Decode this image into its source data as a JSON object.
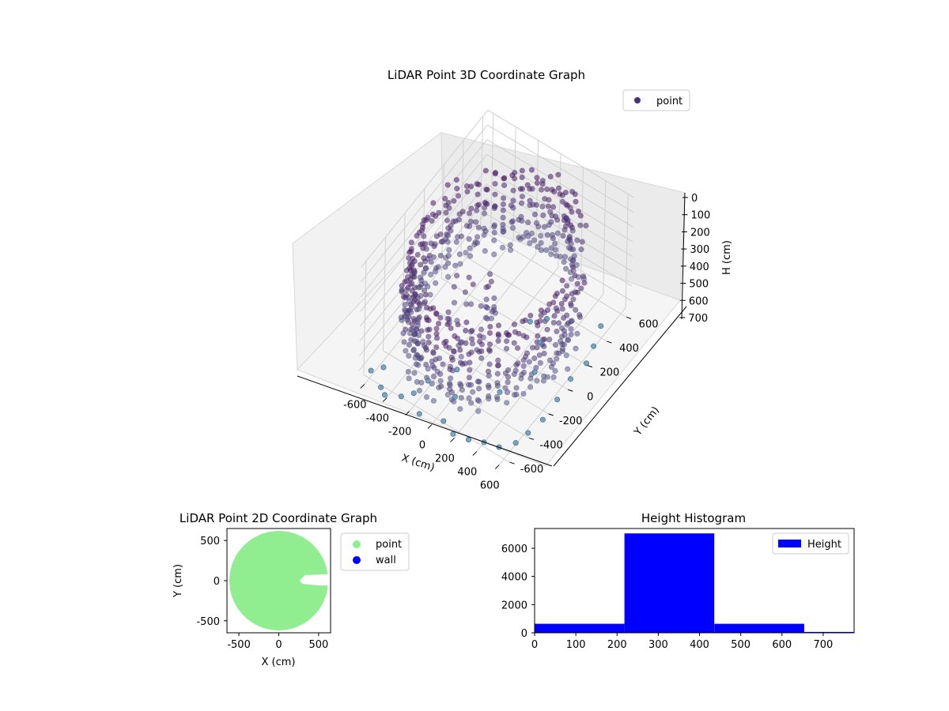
{
  "figure": {
    "background": "#ffffff"
  },
  "chart_data": [
    {
      "type": "scatter",
      "projection": "3d",
      "title": "LiDAR Point 3D Coordinate Graph",
      "xlabel": "X (cm)",
      "ylabel": "Y (cm)",
      "zlabel": "H (cm)",
      "xlim": [
        -650,
        650
      ],
      "ylim": [
        -650,
        650
      ],
      "zlim": [
        770,
        0
      ],
      "x_ticks": [
        -600,
        -400,
        -200,
        0,
        200,
        400,
        600
      ],
      "y_ticks": [
        -600,
        -400,
        -200,
        0,
        200,
        400,
        600
      ],
      "z_ticks": [
        0,
        100,
        200,
        300,
        400,
        500,
        600,
        700
      ],
      "grid": true,
      "legend": {
        "placement": "top-right",
        "entries": [
          "point"
        ]
      },
      "colors": {
        "marker": "#46317e",
        "colormap": [
          "#440154",
          "#3b528b",
          "#5a8fb0",
          "#7fb3c8"
        ]
      },
      "description_of_data": "ring-shaped wall of points about 520-650 cm radius from origin, mostly between heights 150-600 cm, with a gap toward +Y/+X side and scattered points near floor",
      "series": [
        {
          "name": "point",
          "wall_ring": {
            "radius_min": 520,
            "radius_max": 650,
            "h_min": 120,
            "h_max": 620,
            "gap_deg_from": 20,
            "gap_deg_to": 60
          },
          "scattered": [
            [
              -620,
              -560,
              760
            ],
            [
              -560,
              -500,
              760
            ],
            [
              -480,
              -620,
              760
            ],
            [
              -420,
              -650,
              760
            ],
            [
              -300,
              -620,
              740
            ],
            [
              -240,
              -560,
              740
            ],
            [
              -120,
              -640,
              760
            ],
            [
              60,
              -600,
              760
            ],
            [
              180,
              -640,
              760
            ],
            [
              300,
              -620,
              760
            ],
            [
              420,
              -600,
              740
            ],
            [
              520,
              -560,
              760
            ],
            [
              600,
              -480,
              760
            ],
            [
              640,
              -400,
              740
            ],
            [
              650,
              -260,
              760
            ],
            [
              640,
              -100,
              760
            ],
            [
              620,
              60,
              760
            ],
            [
              640,
              200,
              760
            ],
            [
              600,
              320,
              760
            ],
            [
              560,
              440,
              740
            ],
            [
              200,
              300,
              740
            ],
            [
              260,
              160,
              760
            ],
            [
              120,
              220,
              730
            ],
            [
              -80,
              -300,
              720
            ],
            [
              -200,
              -460,
              720
            ],
            [
              40,
              -460,
              720
            ],
            [
              300,
              -300,
              700
            ],
            [
              420,
              -80,
              690
            ]
          ]
        }
      ]
    },
    {
      "type": "scatter",
      "title": "LiDAR Point 2D Coordinate Graph",
      "xlabel": "X (cm)",
      "ylabel": "Y (cm)",
      "xlim": [
        -650,
        650
      ],
      "ylim": [
        -650,
        650
      ],
      "x_ticks": [
        -500,
        0,
        500
      ],
      "y_ticks": [
        500,
        0,
        -500
      ],
      "legend": {
        "placement": "right-outside",
        "entries": [
          "point",
          "wall"
        ]
      },
      "colors": {
        "point": "#90ee90",
        "wall": "#0000ff"
      },
      "series": [
        {
          "name": "point",
          "shape": "filled disc of radius ~600 cm with a notch opening toward +X between about -60 and +80 cm in Y"
        },
        {
          "name": "wall",
          "values": []
        }
      ]
    },
    {
      "type": "bar",
      "title": "Height Histogram",
      "xlabel": "",
      "ylabel": "",
      "xlim": [
        0,
        775
      ],
      "ylim": [
        0,
        7400
      ],
      "x_ticks": [
        0,
        100,
        200,
        300,
        400,
        500,
        600,
        700
      ],
      "y_ticks": [
        0,
        2000,
        4000,
        6000
      ],
      "legend": {
        "placement": "top-right",
        "entries": [
          "Height"
        ]
      },
      "colors": {
        "bar": "#0000ff"
      },
      "bins": [
        {
          "from": 0,
          "to": 218,
          "count": 640
        },
        {
          "from": 218,
          "to": 436,
          "count": 7050
        },
        {
          "from": 436,
          "to": 654,
          "count": 640
        },
        {
          "from": 654,
          "to": 775,
          "count": 60
        }
      ],
      "series": [
        {
          "name": "Height"
        }
      ]
    }
  ]
}
